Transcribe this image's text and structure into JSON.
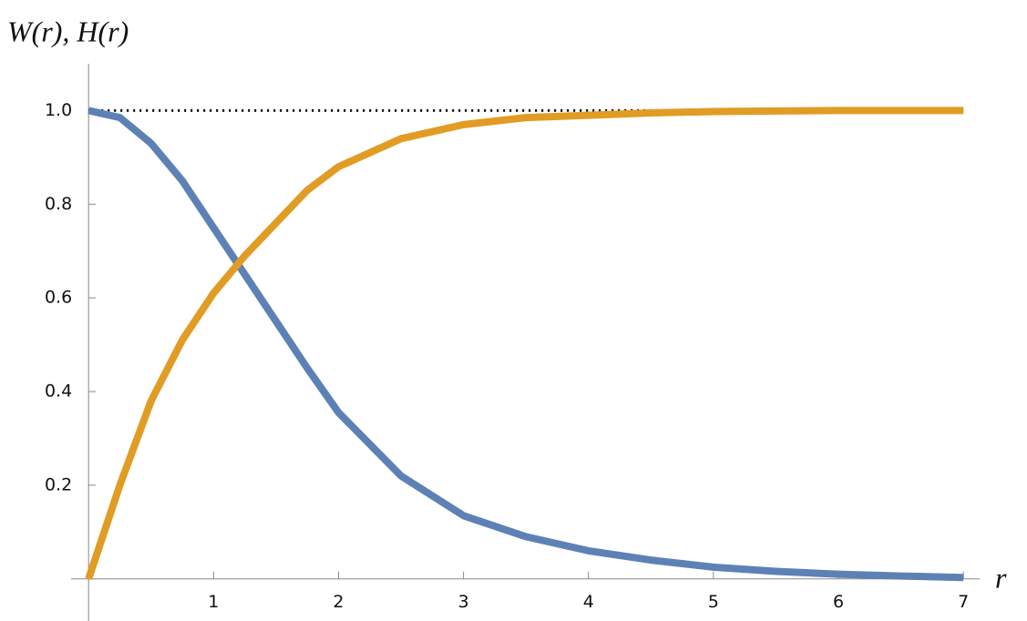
{
  "chart_data": {
    "type": "line",
    "x_label": "r",
    "y_label": "W(r), H(r)",
    "x": [
      0,
      0.25,
      0.5,
      0.75,
      1,
      1.25,
      1.5,
      1.75,
      2,
      2.5,
      3,
      3.5,
      4,
      4.5,
      5,
      5.5,
      6,
      6.5,
      7
    ],
    "series": [
      {
        "name": "W(r)",
        "color": "#5e81b5",
        "values": [
          1,
          0.985,
          0.93,
          0.85,
          0.75,
          0.65,
          0.55,
          0.45,
          0.355,
          0.22,
          0.135,
          0.09,
          0.06,
          0.04,
          0.025,
          0.016,
          0.01,
          0.006,
          0.003
        ]
      },
      {
        "name": "H(r)",
        "color": "#e19c24",
        "values": [
          0,
          0.2,
          0.38,
          0.51,
          0.61,
          0.69,
          0.76,
          0.83,
          0.88,
          0.94,
          0.97,
          0.985,
          0.99,
          0.995,
          0.998,
          0.999,
          1,
          1,
          1
        ]
      }
    ],
    "reference_lines": [
      {
        "y": 1,
        "style": "dotted",
        "color": "#000000"
      }
    ],
    "xlim": [
      -0.14,
      7.13
    ],
    "ylim": [
      -0.09,
      1.1
    ],
    "xticks": [
      1,
      2,
      3,
      4,
      5,
      6,
      7
    ],
    "yticks": [
      0.2,
      0.4,
      0.6,
      0.8,
      {
        "value": 1,
        "label": "1.0"
      }
    ],
    "grid": false,
    "legend": false
  }
}
